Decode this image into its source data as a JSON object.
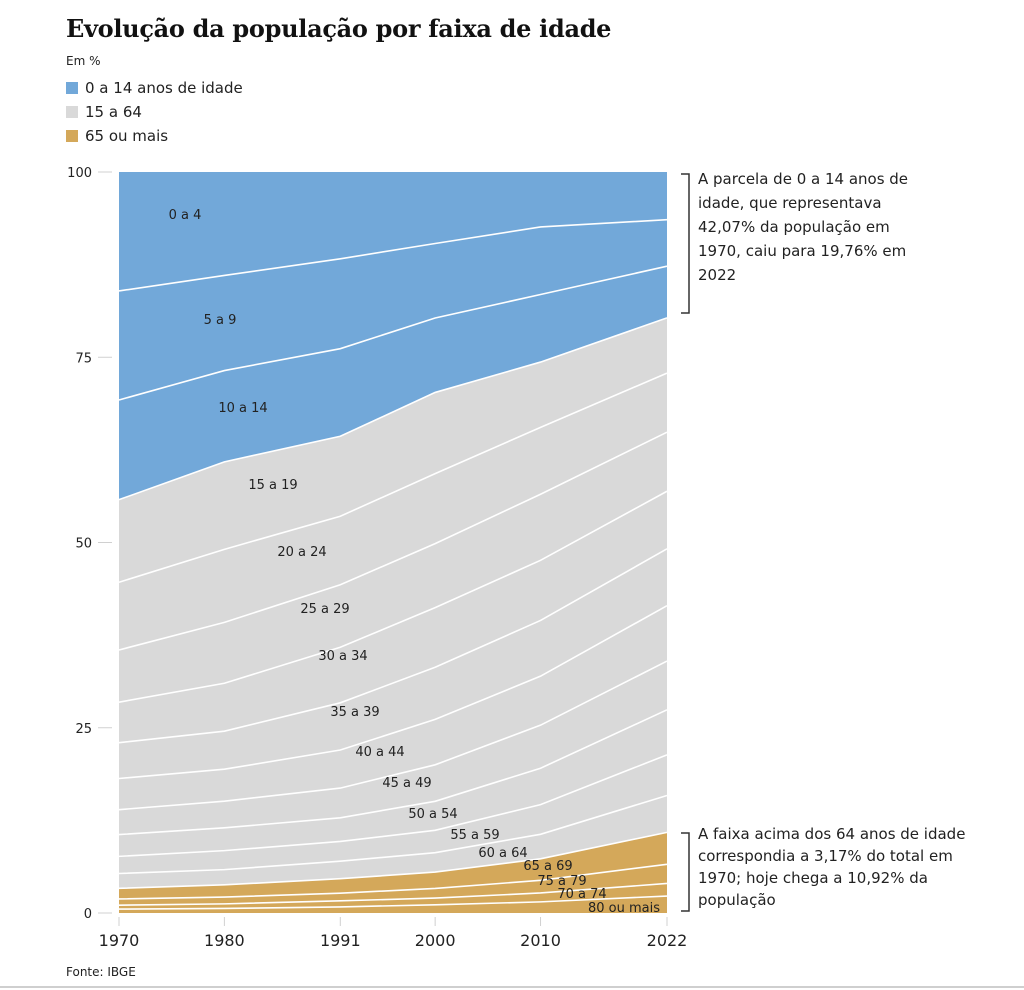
{
  "title": "Evolução da população por faixa de idade",
  "unit": "Em %",
  "legend": [
    {
      "label": "0 a 14 anos de idade",
      "color": "#72a8d9"
    },
    {
      "label": "15 a 64",
      "color": "#d9d9d9"
    },
    {
      "label": "65 ou mais",
      "color": "#d4a85a"
    }
  ],
  "annotations": {
    "top": "A parcela de 0 a 14 anos de idade, que representava 42,07% da população em 1970, caiu para 19,76% em 2022",
    "bottom": "A faixa acima dos 64 anos de idade correspondia a 3,17% do total em 1970; hoje chega a 10,92% da população"
  },
  "source": "Fonte: IBGE",
  "chart_data": {
    "type": "area",
    "stacked": true,
    "title": "Evolução da população por faixa de idade",
    "ylabel": "Em %",
    "xlabel": "",
    "x": [
      "1970",
      "1980",
      "1991",
      "2000",
      "2010",
      "2022"
    ],
    "ylim": [
      0,
      100
    ],
    "yticks": [
      0,
      25,
      50,
      75,
      100
    ],
    "grid": false,
    "legend_position": "top-left",
    "series_bottom_to_top": [
      {
        "name": "80 ou mais",
        "group": "65 ou mais",
        "label": "80 ou mais",
        "values": [
          0.5,
          0.6,
          0.8,
          1.1,
          1.5,
          2.3
        ]
      },
      {
        "name": "75 a 79",
        "group": "65 ou mais",
        "label": "75 a 79",
        "values": [
          0.5,
          0.6,
          0.8,
          0.9,
          1.2,
          1.7
        ]
      },
      {
        "name": "70 a 74",
        "group": "65 ou mais",
        "label": "70 a 74",
        "values": [
          0.8,
          0.9,
          1.0,
          1.3,
          1.7,
          2.6
        ]
      },
      {
        "name": "65 a 69",
        "group": "65 ou mais",
        "label": "65 a 69",
        "values": [
          1.37,
          1.6,
          1.9,
          2.2,
          2.9,
          4.32
        ]
      },
      {
        "name": "60 a 64",
        "group": "15 a 64",
        "label": "60 a 64",
        "values": [
          1.9,
          2.0,
          2.3,
          2.6,
          3.3,
          5.0
        ]
      },
      {
        "name": "55 a 59",
        "group": "15 a 64",
        "label": "55 a 59",
        "values": [
          2.2,
          2.5,
          2.6,
          3.0,
          4.0,
          5.5
        ]
      },
      {
        "name": "50 a 54",
        "group": "15 a 64",
        "label": "50 a 54",
        "values": [
          2.8,
          3.0,
          3.1,
          3.9,
          4.9,
          6.1
        ]
      },
      {
        "name": "45 a 49",
        "group": "15 a 64",
        "label": "45 a 49",
        "values": [
          3.2,
          3.5,
          3.9,
          4.9,
          5.8,
          6.6
        ]
      },
      {
        "name": "40 a 44",
        "group": "15 a 64",
        "label": "40 a 44",
        "values": [
          4.0,
          4.2,
          5.0,
          6.1,
          6.6,
          7.5
        ]
      },
      {
        "name": "35 a 39",
        "group": "15 a 64",
        "label": "35 a 39",
        "values": [
          4.6,
          5.0,
          6.2,
          7.0,
          7.5,
          7.7
        ]
      },
      {
        "name": "30 a 34",
        "group": "15 a 64",
        "label": "30 a 34",
        "values": [
          5.2,
          6.3,
          7.3,
          8.0,
          8.1,
          7.8
        ]
      },
      {
        "name": "25 a 29",
        "group": "15 a 64",
        "label": "25 a 29",
        "values": [
          6.7,
          8.0,
          8.2,
          8.6,
          8.9,
          8.0
        ]
      },
      {
        "name": "20 a 24",
        "group": "15 a 64",
        "label": "20 a 24",
        "values": [
          8.7,
          9.6,
          9.0,
          9.4,
          9.0,
          8.0
        ]
      },
      {
        "name": "15 a 19",
        "group": "15 a 64",
        "label": "15 a 19",
        "values": [
          10.6,
          11.5,
          10.5,
          10.9,
          8.8,
          7.48
        ]
      },
      {
        "name": "10 a 14",
        "group": "0 a 14 anos de idade",
        "label": "10 a 14",
        "values": [
          12.8,
          12.0,
          11.5,
          10.0,
          9.1,
          7.0
        ]
      },
      {
        "name": "5 a 9",
        "group": "0 a 14 anos de idade",
        "label": "5 a 9",
        "values": [
          14.0,
          12.5,
          11.8,
          10.0,
          9.1,
          6.3
        ]
      },
      {
        "name": "0 a 4",
        "group": "0 a 14 anos de idade",
        "label": "0 a 4",
        "values": [
          15.27,
          13.6,
          11.4,
          9.6,
          7.4,
          6.46
        ]
      }
    ],
    "group_colors": {
      "0 a 14 anos de idade": "#72a8d9",
      "15 a 64": "#d9d9d9",
      "65 ou mais": "#d4a85a"
    },
    "group_totals": {
      "0 a 14 anos de idade": {
        "1970": 42.07,
        "2022": 19.76
      },
      "65 ou mais": {
        "1970": 3.17,
        "2022": 10.92
      }
    }
  }
}
